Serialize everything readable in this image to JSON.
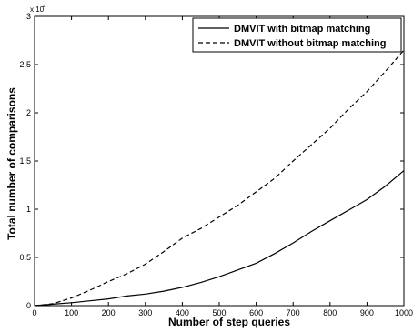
{
  "chart_data": {
    "type": "line",
    "xlabel": "Number of step queries",
    "ylabel": "Total number of comparisons",
    "y_scale_multiplier": "x 10",
    "y_scale_exponent": "4",
    "xlim": [
      0,
      1000
    ],
    "ylim": [
      0,
      3
    ],
    "x_ticks": [
      "0",
      "100",
      "200",
      "300",
      "400",
      "500",
      "600",
      "700",
      "800",
      "900",
      "1000"
    ],
    "y_ticks": [
      "0",
      "0.5",
      "1",
      "1.5",
      "2",
      "2.5",
      "3"
    ],
    "grid": false,
    "legend_position": "top-right",
    "series": [
      {
        "name": "DMVIT with bitmap matching",
        "style": "solid",
        "x": [
          0,
          50,
          100,
          150,
          200,
          250,
          300,
          350,
          400,
          450,
          500,
          550,
          600,
          650,
          700,
          750,
          800,
          850,
          900,
          950,
          1000
        ],
        "y": [
          0,
          0.015,
          0.03,
          0.05,
          0.07,
          0.1,
          0.12,
          0.15,
          0.19,
          0.24,
          0.3,
          0.37,
          0.44,
          0.54,
          0.65,
          0.77,
          0.88,
          0.99,
          1.1,
          1.24,
          1.4
        ]
      },
      {
        "name": "DMVIT without bitmap matching",
        "style": "dashed",
        "x": [
          0,
          50,
          100,
          150,
          200,
          250,
          300,
          350,
          400,
          450,
          500,
          550,
          600,
          650,
          700,
          750,
          800,
          850,
          900,
          950,
          1000
        ],
        "y": [
          0,
          0.02,
          0.08,
          0.16,
          0.25,
          0.33,
          0.43,
          0.56,
          0.7,
          0.8,
          0.92,
          1.04,
          1.18,
          1.32,
          1.5,
          1.67,
          1.84,
          2.04,
          2.22,
          2.43,
          2.65
        ]
      }
    ]
  }
}
